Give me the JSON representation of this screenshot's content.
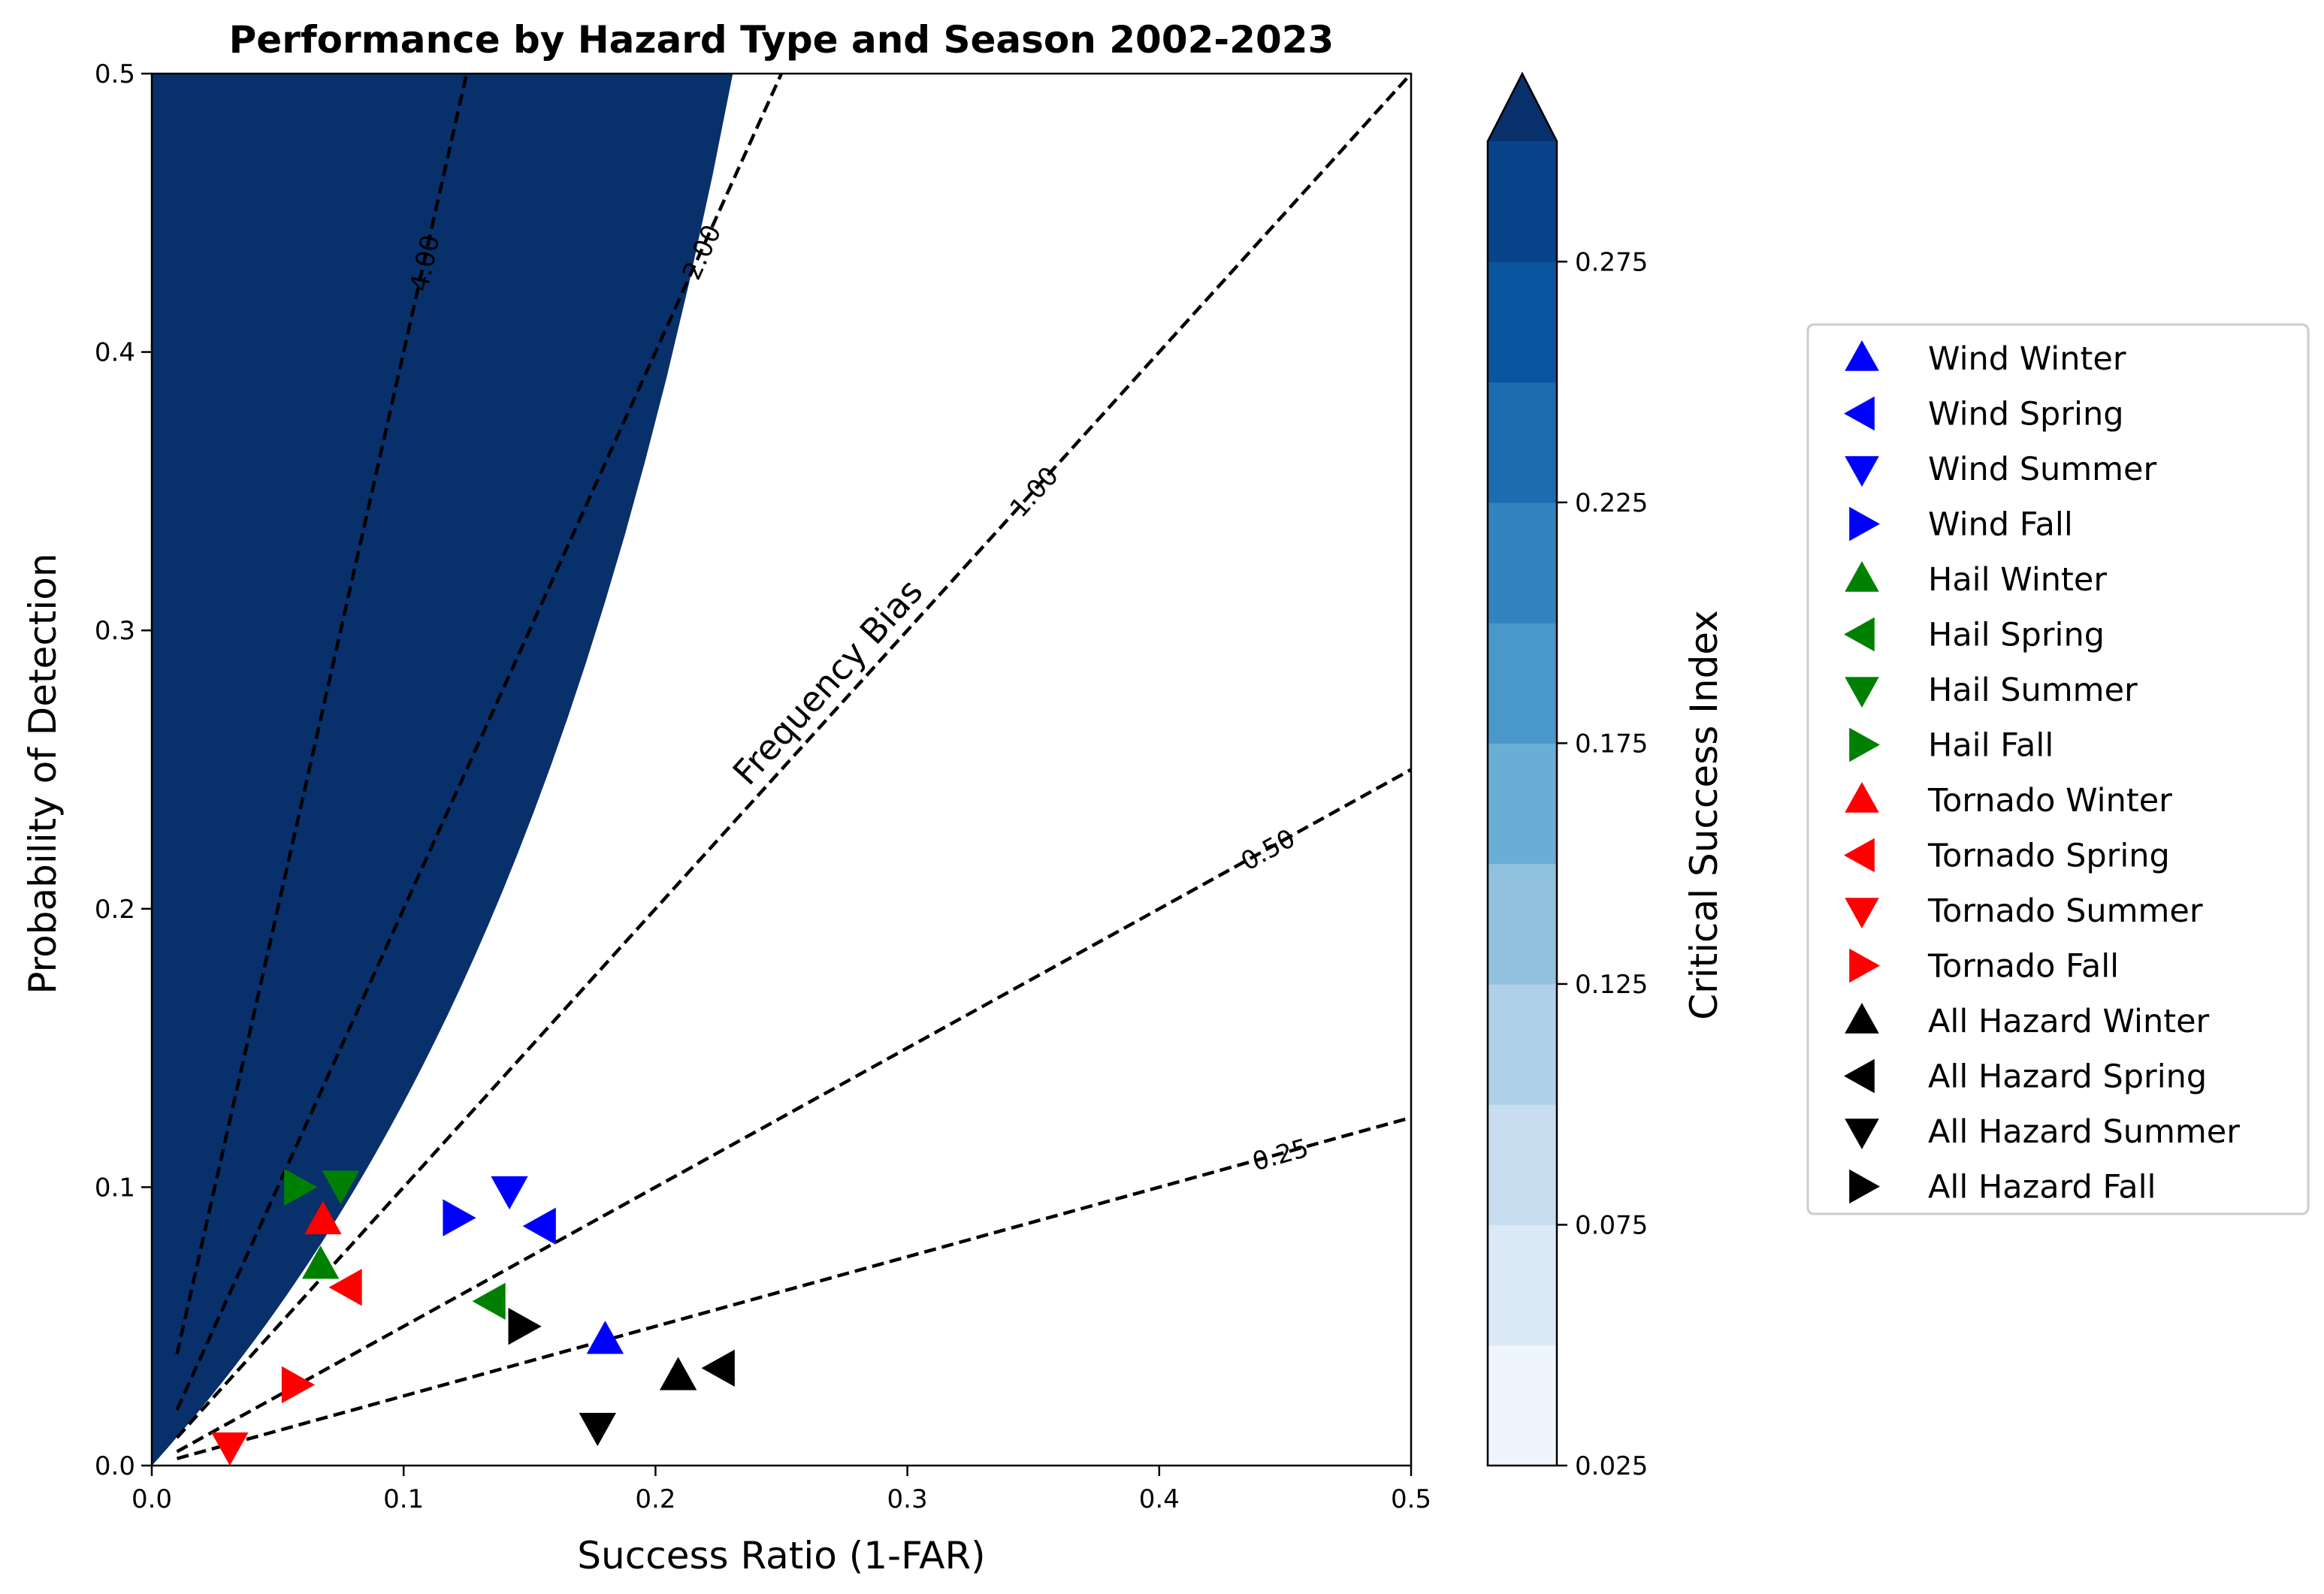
{
  "chart_data": {
    "type": "scatter",
    "title": "Performance by Hazard Type and Season 2002-2023",
    "xlabel": "Success Ratio (1-FAR)",
    "ylabel": "Probability of Detection",
    "xlim": [
      0,
      0.5
    ],
    "ylim": [
      0,
      0.5
    ],
    "x_ticks": [
      "0.0",
      "0.1",
      "0.2",
      "0.3",
      "0.4",
      "0.5"
    ],
    "y_ticks": [
      "0.0",
      "0.1",
      "0.2",
      "0.3",
      "0.4",
      "0.5"
    ],
    "x_tick_values": [
      0,
      0.1,
      0.2,
      0.3,
      0.4,
      0.5
    ],
    "y_tick_values": [
      0,
      0.1,
      0.2,
      0.3,
      0.4,
      0.5
    ],
    "contour": {
      "quantity": "Critical Success Index",
      "levels": [
        0.025,
        0.05,
        0.075,
        0.1,
        0.125,
        0.15,
        0.175,
        0.2,
        0.225,
        0.25,
        0.275,
        0.3
      ],
      "colors": [
        "#eff5fc",
        "#dbe9f6",
        "#c9ddf0",
        "#afd1e7",
        "#90c2df",
        "#6aaed6",
        "#4a98c9",
        "#3283be",
        "#1d6cb1",
        "#0b54a0",
        "#08438a",
        "#08306b"
      ],
      "extend": "max"
    },
    "colorbar": {
      "label": "Critical Success Index",
      "ticks": [
        "0.025",
        "0.075",
        "0.125",
        "0.175",
        "0.225",
        "0.275"
      ],
      "tick_values": [
        0.025,
        0.075,
        0.125,
        0.175,
        0.225,
        0.275
      ]
    },
    "bias_lines": {
      "annotation": "Frequency Bias",
      "values": [
        0.25,
        0.5,
        1.0,
        2.0,
        4.0
      ],
      "labels": [
        "0.25",
        "0.50",
        "1.00",
        "2.00",
        "4.00"
      ]
    },
    "series": [
      {
        "name": "Wind Winter",
        "color": "#0000ff",
        "marker": "triangle-up",
        "x": 0.18,
        "y": 0.045
      },
      {
        "name": "Wind Spring",
        "color": "#0000ff",
        "marker": "triangle-left",
        "x": 0.155,
        "y": 0.086
      },
      {
        "name": "Wind Summer",
        "color": "#0000ff",
        "marker": "triangle-down",
        "x": 0.142,
        "y": 0.099
      },
      {
        "name": "Wind Fall",
        "color": "#0000ff",
        "marker": "triangle-right",
        "x": 0.121,
        "y": 0.089
      },
      {
        "name": "Hail Winter",
        "color": "#008000",
        "marker": "triangle-up",
        "x": 0.067,
        "y": 0.072
      },
      {
        "name": "Hail Spring",
        "color": "#008000",
        "marker": "triangle-left",
        "x": 0.135,
        "y": 0.059
      },
      {
        "name": "Hail Summer",
        "color": "#008000",
        "marker": "triangle-down",
        "x": 0.075,
        "y": 0.101
      },
      {
        "name": "Hail Fall",
        "color": "#008000",
        "marker": "triangle-right",
        "x": 0.058,
        "y": 0.1
      },
      {
        "name": "Tornado Winter",
        "color": "#ff0000",
        "marker": "triangle-up",
        "x": 0.068,
        "y": 0.088
      },
      {
        "name": "Tornado Spring",
        "color": "#ff0000",
        "marker": "triangle-left",
        "x": 0.078,
        "y": 0.064
      },
      {
        "name": "Tornado Summer",
        "color": "#ff0000",
        "marker": "triangle-down",
        "x": 0.031,
        "y": 0.007
      },
      {
        "name": "Tornado Fall",
        "color": "#ff0000",
        "marker": "triangle-right",
        "x": 0.057,
        "y": 0.029
      },
      {
        "name": "All Hazard Winter",
        "color": "#000000",
        "marker": "triangle-up",
        "x": 0.209,
        "y": 0.032
      },
      {
        "name": "All Hazard Spring",
        "color": "#000000",
        "marker": "triangle-left",
        "x": 0.226,
        "y": 0.035
      },
      {
        "name": "All Hazard Summer",
        "color": "#000000",
        "marker": "triangle-down",
        "x": 0.177,
        "y": 0.014
      },
      {
        "name": "All Hazard Fall",
        "color": "#000000",
        "marker": "triangle-right",
        "x": 0.147,
        "y": 0.05
      }
    ],
    "legend": {
      "position": "right"
    }
  }
}
